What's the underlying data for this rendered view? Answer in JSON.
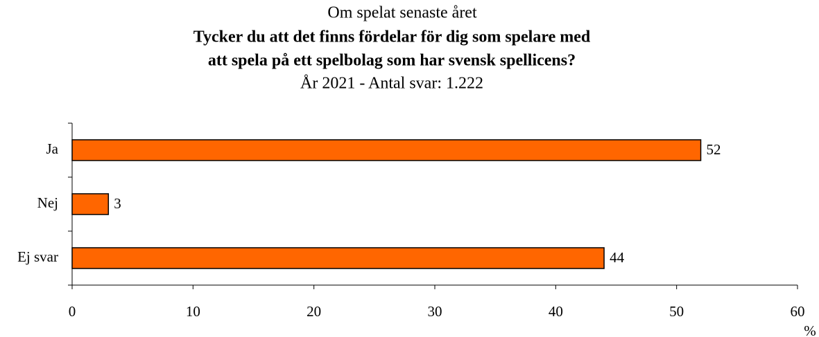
{
  "chart_data": {
    "type": "bar",
    "orientation": "horizontal",
    "supertitle": "Om spelat senaste året",
    "title": [
      "Tycker du att det finns fördelar för dig som spelare med",
      "att spela på ett spelbolag som har svensk spellicens?"
    ],
    "subtitle": "År 2021 - Antal svar: 1.222",
    "x_label": "%",
    "categories": [
      "Ja",
      "Nej",
      "Ej svar"
    ],
    "values": [
      52,
      3,
      44
    ],
    "color": "#ff6600",
    "xlim": [
      0,
      60
    ],
    "xticks": [
      0,
      10,
      20,
      30,
      40,
      50,
      60
    ],
    "grid": false
  }
}
